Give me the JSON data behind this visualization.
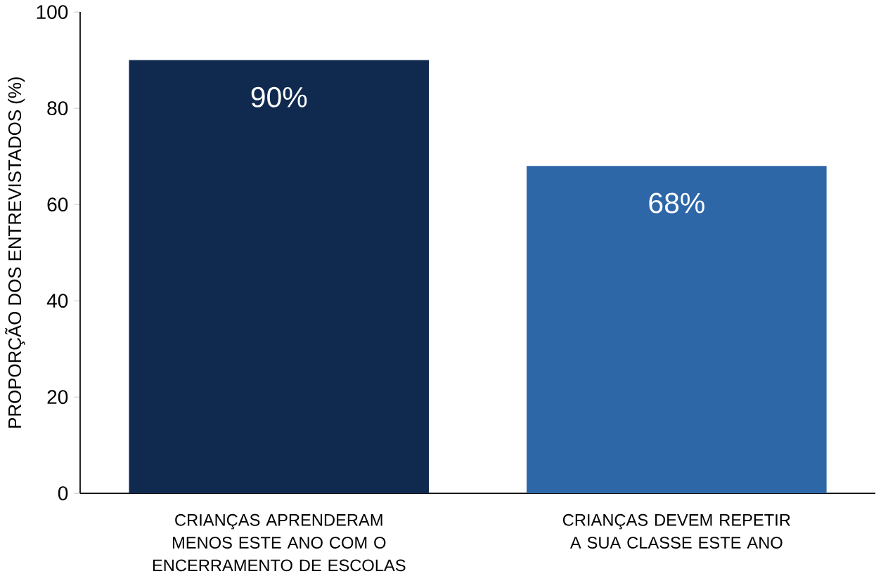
{
  "chart_data": {
    "type": "bar",
    "ylabel": "PROPORÇÃO DOS ENTREVISTADOS (%)",
    "categories": [
      "CRIANÇAS APRENDERAM MENOS ESTE ANO COM O ENCERRAMENTO DE ESCOLAS",
      "CRIANÇAS DEVEM REPETIR A SUA CLASSE ESTE ANO"
    ],
    "values": [
      90,
      68
    ],
    "value_labels": [
      "90%",
      "68%"
    ],
    "colors": [
      "#0f2a4e",
      "#2e67a8"
    ],
    "ylim": [
      0,
      100
    ],
    "yticks": [
      0,
      20,
      40,
      60,
      80,
      100
    ],
    "grid": false
  }
}
